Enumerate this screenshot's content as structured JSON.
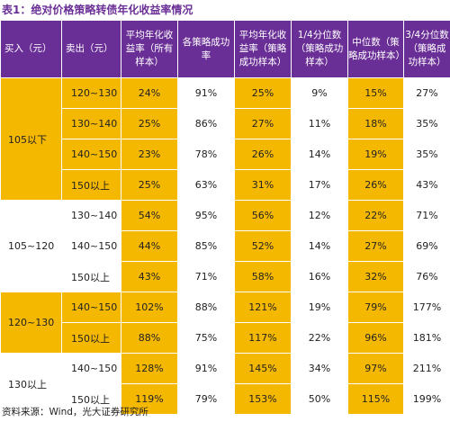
{
  "title": "表1：绝对价格策略转债年化收益率情况",
  "headers": [
    "买入（元）",
    "卖出（元）",
    "平均年化收益率（所有样本）",
    "各策略成功率",
    "平均年化收益率（策略成功样本）",
    "1/4分位数（策略成功样本）",
    "中位数（策略成功样本）",
    "3/4分位数（策略成功样本）"
  ],
  "groups": [
    {
      "buy": "105以下",
      "rows": [
        {
          "sell": "120~130",
          "cells": [
            "24%",
            "91%",
            "25%",
            "9%",
            "15%",
            "27%"
          ]
        },
        {
          "sell": "130~140",
          "cells": [
            "25%",
            "86%",
            "27%",
            "11%",
            "18%",
            "35%"
          ]
        },
        {
          "sell": "140~150",
          "cells": [
            "23%",
            "78%",
            "26%",
            "14%",
            "19%",
            "35%"
          ]
        },
        {
          "sell": "150以上",
          "cells": [
            "25%",
            "63%",
            "31%",
            "17%",
            "26%",
            "43%"
          ]
        }
      ]
    },
    {
      "buy": "105~120",
      "rows": [
        {
          "sell": "130~140",
          "cells": [
            "54%",
            "95%",
            "56%",
            "12%",
            "22%",
            "71%"
          ]
        },
        {
          "sell": "140~150",
          "cells": [
            "44%",
            "85%",
            "52%",
            "14%",
            "27%",
            "69%"
          ]
        },
        {
          "sell": "150以上",
          "cells": [
            "43%",
            "71%",
            "58%",
            "16%",
            "32%",
            "76%"
          ]
        }
      ]
    },
    {
      "buy": "120~130",
      "rows": [
        {
          "sell": "140~150",
          "cells": [
            "102%",
            "88%",
            "121%",
            "19%",
            "79%",
            "177%"
          ]
        },
        {
          "sell": "150以上",
          "cells": [
            "88%",
            "75%",
            "117%",
            "22%",
            "96%",
            "181%"
          ]
        }
      ]
    },
    {
      "buy": "130以上",
      "rows": [
        {
          "sell": "140~150",
          "cells": [
            "128%",
            "91%",
            "145%",
            "34%",
            "97%",
            "211%"
          ]
        },
        {
          "sell": "150以上",
          "cells": [
            "119%",
            "79%",
            "153%",
            "50%",
            "115%",
            "199%"
          ]
        }
      ]
    }
  ],
  "source": "资料来源：Wind，光大证券研究所",
  "colors": {
    "header": "#6a2f97",
    "highlight": "#f5b800",
    "title": "#6a2f97"
  }
}
